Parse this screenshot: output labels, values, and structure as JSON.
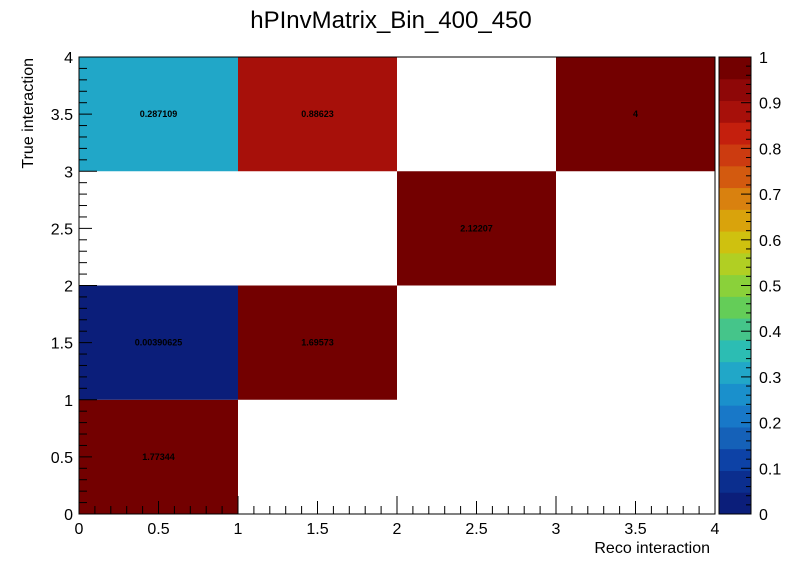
{
  "chart_data": {
    "type": "heatmap",
    "title": "hPInvMatrix_Bin_400_450",
    "xlabel": "Reco interaction",
    "ylabel": "True interaction",
    "xlim": [
      0,
      4
    ],
    "ylim": [
      0,
      4
    ],
    "x_bins": [
      0,
      1,
      2,
      3,
      4
    ],
    "y_bins": [
      0,
      1,
      2,
      3,
      4
    ],
    "x_ticks": [
      "0",
      "0.5",
      "1",
      "1.5",
      "2",
      "2.5",
      "3",
      "3.5",
      "4"
    ],
    "y_ticks": [
      "0",
      "0.5",
      "1",
      "1.5",
      "2",
      "2.5",
      "3",
      "3.5",
      "4"
    ],
    "colorbar": {
      "range": [
        0,
        1
      ],
      "ticks": [
        "0",
        "0.1",
        "0.2",
        "0.3",
        "0.4",
        "0.5",
        "0.6",
        "0.7",
        "0.8",
        "0.9",
        "1"
      ]
    },
    "cells": [
      {
        "x": 0.5,
        "y": 0.5,
        "value": 1.77344,
        "label": "1.77344"
      },
      {
        "x": 0.5,
        "y": 1.5,
        "value": 0.00390625,
        "label": "0.00390625"
      },
      {
        "x": 1.5,
        "y": 1.5,
        "value": 1.69573,
        "label": "1.69573"
      },
      {
        "x": 2.5,
        "y": 2.5,
        "value": 2.12207,
        "label": "2.12207"
      },
      {
        "x": 0.5,
        "y": 3.5,
        "value": 0.287109,
        "label": "0.287109"
      },
      {
        "x": 1.5,
        "y": 3.5,
        "value": 0.88623,
        "label": "0.88623"
      },
      {
        "x": 3.5,
        "y": 3.5,
        "value": 4,
        "label": "4"
      }
    ]
  }
}
